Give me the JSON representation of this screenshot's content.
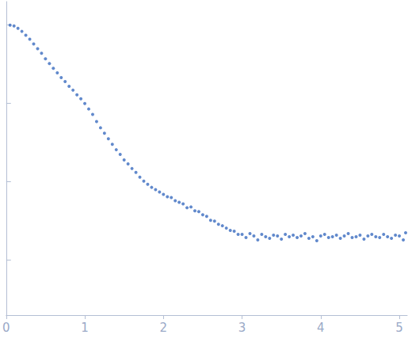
{
  "chart_data": {
    "type": "scatter",
    "color": "#3a6bbf",
    "marker": "circle",
    "grid": false,
    "tick_labels": "x",
    "xlim": [
      0,
      5.1
    ],
    "xticks": [
      0,
      1,
      2,
      3,
      4,
      5
    ],
    "ylim": [
      0.3,
      4.3
    ],
    "yticks": [
      1,
      2,
      3,
      4
    ],
    "x": [
      0.05,
      0.1,
      0.15,
      0.2,
      0.25,
      0.3,
      0.35,
      0.4,
      0.45,
      0.5,
      0.55,
      0.6,
      0.65,
      0.7,
      0.75,
      0.8,
      0.85,
      0.9,
      0.95,
      1.0,
      1.05,
      1.1,
      1.15,
      1.2,
      1.25,
      1.3,
      1.35,
      1.4,
      1.45,
      1.5,
      1.55,
      1.6,
      1.65,
      1.7,
      1.75,
      1.8,
      1.85,
      1.9,
      1.95,
      2.0,
      2.05,
      2.1,
      2.15,
      2.2,
      2.25,
      2.3,
      2.35,
      2.4,
      2.45,
      2.5,
      2.55,
      2.6,
      2.65,
      2.7,
      2.75,
      2.8,
      2.85,
      2.9,
      2.95,
      3.0,
      3.05,
      3.1,
      3.15,
      3.2,
      3.25,
      3.3,
      3.35,
      3.4,
      3.45,
      3.5,
      3.55,
      3.6,
      3.65,
      3.7,
      3.75,
      3.8,
      3.85,
      3.9,
      3.95,
      4.0,
      4.05,
      4.1,
      4.15,
      4.2,
      4.25,
      4.3,
      4.35,
      4.4,
      4.45,
      4.5,
      4.55,
      4.6,
      4.65,
      4.7,
      4.75,
      4.8,
      4.85,
      4.9,
      4.95,
      5.0,
      5.05,
      5.08
    ],
    "values": [
      4.0,
      3.99,
      3.96,
      3.92,
      3.87,
      3.82,
      3.76,
      3.7,
      3.64,
      3.57,
      3.51,
      3.45,
      3.39,
      3.33,
      3.28,
      3.22,
      3.17,
      3.11,
      3.06,
      3.0,
      2.93,
      2.86,
      2.77,
      2.69,
      2.62,
      2.55,
      2.48,
      2.41,
      2.35,
      2.28,
      2.23,
      2.17,
      2.12,
      2.06,
      2.01,
      1.97,
      1.93,
      1.9,
      1.87,
      1.84,
      1.81,
      1.8,
      1.76,
      1.74,
      1.72,
      1.67,
      1.68,
      1.63,
      1.62,
      1.58,
      1.56,
      1.51,
      1.5,
      1.46,
      1.44,
      1.41,
      1.38,
      1.37,
      1.33,
      1.33,
      1.29,
      1.34,
      1.31,
      1.26,
      1.33,
      1.3,
      1.28,
      1.32,
      1.31,
      1.27,
      1.33,
      1.3,
      1.32,
      1.29,
      1.31,
      1.34,
      1.28,
      1.3,
      1.25,
      1.31,
      1.33,
      1.29,
      1.3,
      1.32,
      1.28,
      1.31,
      1.34,
      1.29,
      1.3,
      1.32,
      1.27,
      1.31,
      1.33,
      1.3,
      1.29,
      1.33,
      1.3,
      1.28,
      1.32,
      1.31,
      1.26,
      1.35
    ]
  }
}
